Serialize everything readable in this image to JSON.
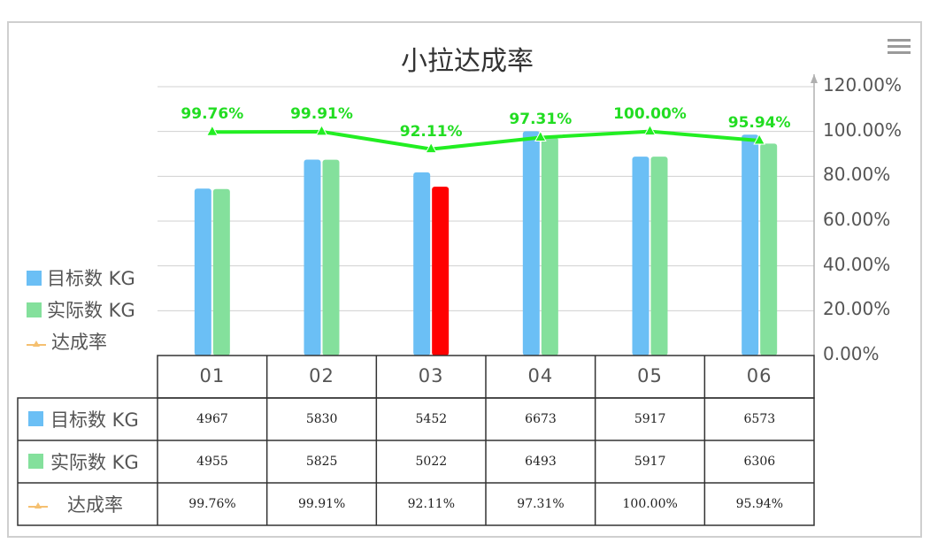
{
  "chart_data": {
    "type": "bar",
    "title": "小拉达成率",
    "categories": [
      "01",
      "02",
      "03",
      "04",
      "05",
      "06"
    ],
    "series": [
      {
        "name": "目标数 KG",
        "type": "bar",
        "color": "#6bbff5",
        "values": [
          4967,
          5830,
          5452,
          6673,
          5917,
          6573
        ]
      },
      {
        "name": "实际数 KG",
        "type": "bar",
        "color": "#84e09c",
        "below_target_color": "#ff0000",
        "values": [
          4955,
          5825,
          5022,
          6493,
          5917,
          6306
        ]
      },
      {
        "name": "达成率",
        "type": "line",
        "color": "#22ee22",
        "axis": "right",
        "values": [
          99.76,
          99.91,
          92.11,
          97.31,
          100.0,
          95.94
        ]
      }
    ],
    "point_labels": [
      "99.76%",
      "99.91%",
      "92.11%",
      "97.31%",
      "100.00%",
      "95.94%"
    ],
    "right_axis": {
      "ticks": [
        "120.00%",
        "100.00%",
        "80.00%",
        "60.00%",
        "40.00%",
        "20.00%",
        "0.00%"
      ],
      "ylim": [
        0,
        120
      ]
    },
    "left_axis": {
      "ylim": [
        0,
        8000
      ]
    },
    "legend_position": "left",
    "data_table": {
      "rows": [
        {
          "label": "目标数 KG",
          "values": [
            "4967",
            "5830",
            "5452",
            "6673",
            "5917",
            "6573"
          ]
        },
        {
          "label": "实际数 KG",
          "values": [
            "4955",
            "5825",
            "5022",
            "6493",
            "5917",
            "6306"
          ]
        },
        {
          "label": "达成率",
          "values": [
            "99.76%",
            "99.91%",
            "92.11%",
            "97.31%",
            "100.00%",
            "95.94%"
          ]
        }
      ]
    },
    "legend_line_color": "#f5c070",
    "grid": true
  },
  "toolbar": {
    "menu_icon": "hamburger-menu-icon"
  }
}
